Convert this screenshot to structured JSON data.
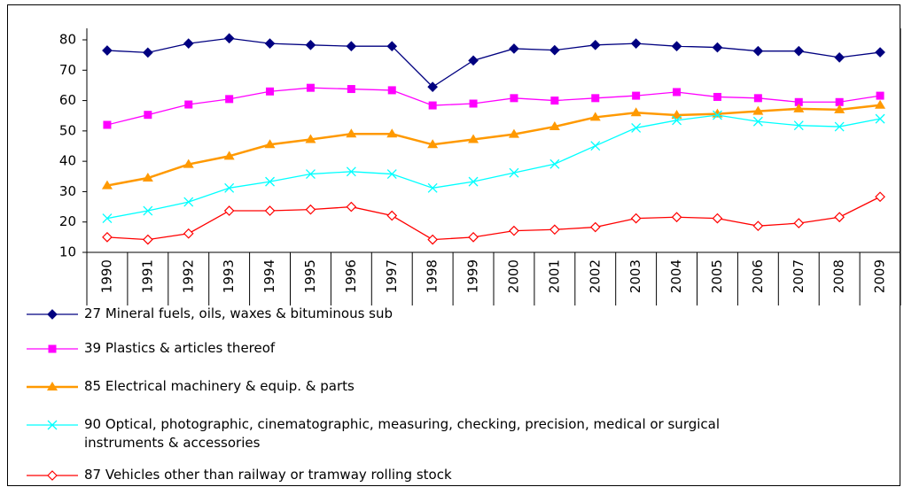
{
  "chart_data": {
    "type": "line",
    "categories": [
      "1990",
      "1991",
      "1992",
      "1993",
      "1994",
      "1995",
      "1996",
      "1997",
      "1998",
      "1999",
      "2000",
      "2001",
      "2002",
      "2003",
      "2004",
      "2005",
      "2006",
      "2007",
      "2008",
      "2009"
    ],
    "ylim": [
      10,
      80
    ],
    "yticks": [
      10,
      20,
      30,
      40,
      50,
      60,
      70,
      80
    ],
    "series": [
      {
        "name": "27 Mineral fuels, oils, waxes & bituminous sub",
        "color": "#000080",
        "marker": "diamond",
        "values": [
          76.5,
          75.8,
          78.8,
          80.5,
          78.8,
          78.3,
          77.9,
          77.9,
          64.5,
          73.2,
          77.1,
          76.6,
          78.3,
          78.8,
          77.9,
          77.5,
          76.3,
          76.3,
          74.2,
          75.9
        ]
      },
      {
        "name": "39 Plastics & articles thereof",
        "color": "#ff00ff",
        "marker": "square",
        "values": [
          52,
          55.3,
          58.7,
          60.5,
          63,
          64.2,
          63.8,
          63.4,
          58.4,
          59,
          60.8,
          60,
          60.8,
          61.6,
          62.8,
          61.2,
          60.8,
          59.5,
          59.5,
          61.6
        ]
      },
      {
        "name": "85 Electrical machinery & equip. & parts",
        "color": "#ff9900",
        "marker": "triangle",
        "values": [
          32,
          34.5,
          39,
          41.7,
          45.5,
          47.2,
          49,
          49,
          45.5,
          47.2,
          48.9,
          51.4,
          54.5,
          56,
          55.2,
          55.6,
          56.5,
          57.3,
          57,
          58.5
        ]
      },
      {
        "name": "90 Optical, photographic, cinematographic, measuring, checking, precision, medical or surgical instruments & accessories",
        "color": "#00ffff",
        "marker": "x",
        "values": [
          21.2,
          23.7,
          26.6,
          31.2,
          33.3,
          35.8,
          36.6,
          35.8,
          31.2,
          33.3,
          36.2,
          39.1,
          45.1,
          51,
          53.5,
          55.2,
          53.1,
          51.8,
          51.4,
          54
        ]
      },
      {
        "name": "87 Vehicles other than railway or tramway rolling stock",
        "color": "#ff0000",
        "marker": "hollow-diamond",
        "values": [
          15,
          14.2,
          16.2,
          23.7,
          23.7,
          24.1,
          25,
          22.1,
          14.2,
          15,
          17.1,
          17.5,
          18.3,
          21.2,
          21.6,
          21.2,
          18.7,
          19.6,
          21.6,
          28.3
        ]
      }
    ]
  }
}
